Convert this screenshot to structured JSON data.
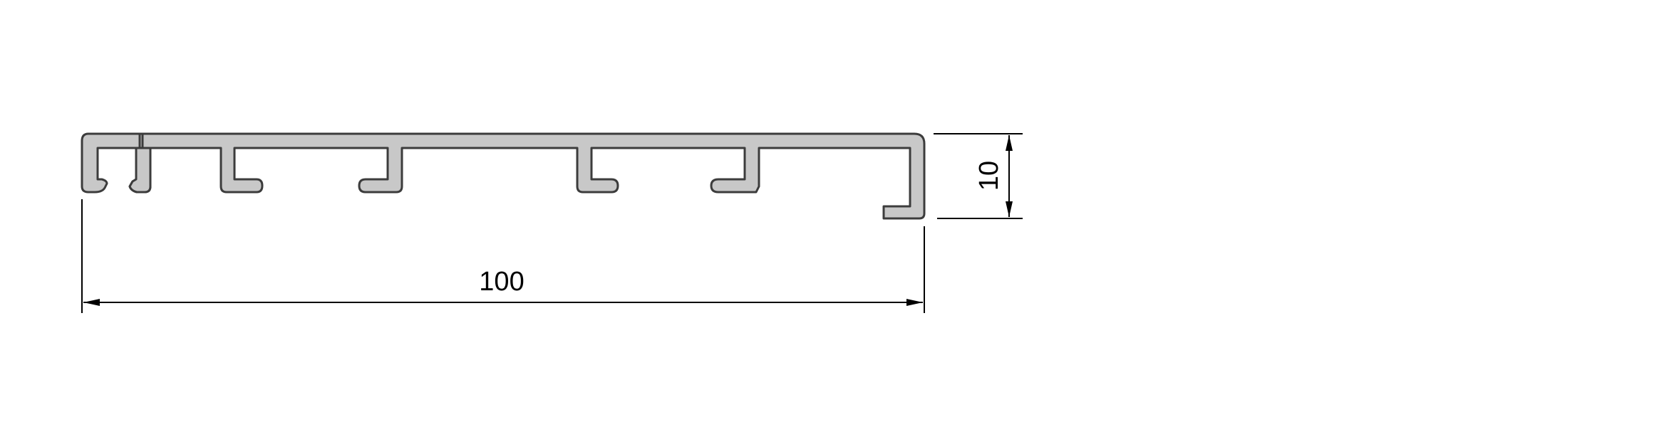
{
  "dimensions": {
    "width_label": "100",
    "height_label": "10"
  },
  "colors": {
    "profile_fill": "#c8c8c8",
    "profile_stroke": "#3c3c3c",
    "dimension_line": "#000000",
    "background": "#ffffff"
  }
}
